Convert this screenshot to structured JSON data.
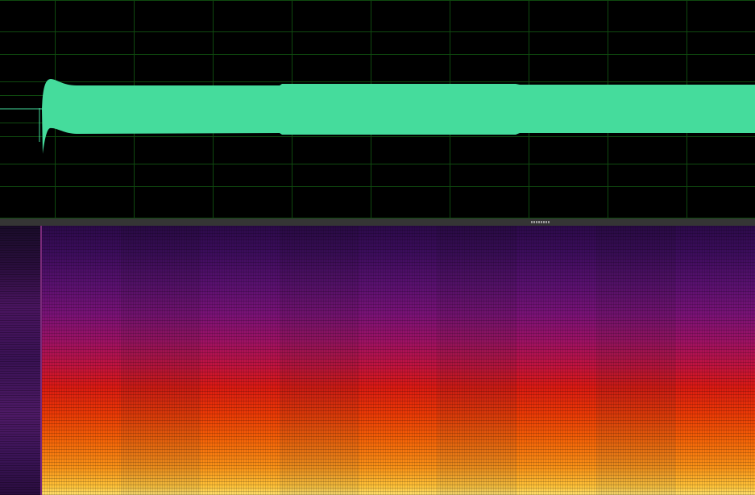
{
  "waveform": {
    "color": "#45dc9c",
    "grid_color": "#0f4a0f",
    "background": "#000000"
  },
  "spectrogram": {
    "colormap": "inferno-like",
    "segments": 9
  }
}
